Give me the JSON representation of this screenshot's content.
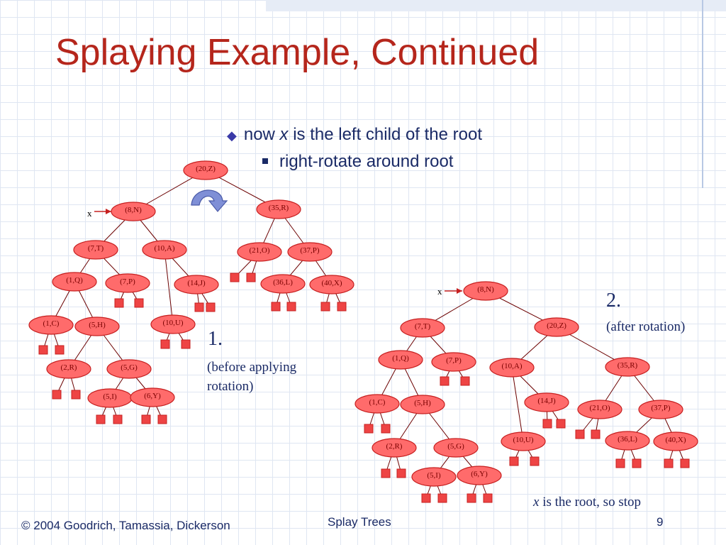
{
  "title": "Splaying Example, Continued",
  "bullets": {
    "line1_pre": "now ",
    "line1_var": "x",
    "line1_post": " is the left child of the root",
    "line2": "right-rotate around root"
  },
  "before": {
    "number": "1.",
    "caption_line1": "(before applying",
    "caption_line2": "rotation)",
    "pointer": "x",
    "nodes": [
      "(20,Z)",
      "(8,N)",
      "(35,R)",
      "(7,T)",
      "(10,A)",
      "(21,O)",
      "(37,P)",
      "(1,Q)",
      "(7,P)",
      "(14,J)",
      "(36,L)",
      "(40,X)",
      "(1,C)",
      "(5,H)",
      "(10,U)",
      "(2,R)",
      "(5,G)",
      "(5,I)",
      "(6,Y)"
    ]
  },
  "after": {
    "number": "2.",
    "caption": "(after rotation)",
    "pointer": "x",
    "nodes": [
      "(8,N)",
      "(7,T)",
      "(20,Z)",
      "(1,Q)",
      "(7,P)",
      "(10,A)",
      "(35,R)",
      "(1,C)",
      "(5,H)",
      "(14,J)",
      "(21,O)",
      "(37,P)",
      "(2,R)",
      "(5,G)",
      "(10,U)",
      "(36,L)",
      "(40,X)",
      "(5,I)",
      "(6,Y)"
    ],
    "stop_var": "x",
    "stop_text": " is the root, so stop"
  },
  "footer": {
    "copyright": "© 2004 Goodrich, Tamassia, Dickerson",
    "topic": "Splay Trees",
    "page": "9"
  },
  "colors": {
    "node_fill": "#ff6b6b",
    "node_stroke": "#c62020",
    "leaf_fill": "#ee4444",
    "edge": "#6b0000",
    "title": "#b5261c",
    "text": "#1a2a66",
    "rotate_arrow": "#7f8fd6"
  }
}
